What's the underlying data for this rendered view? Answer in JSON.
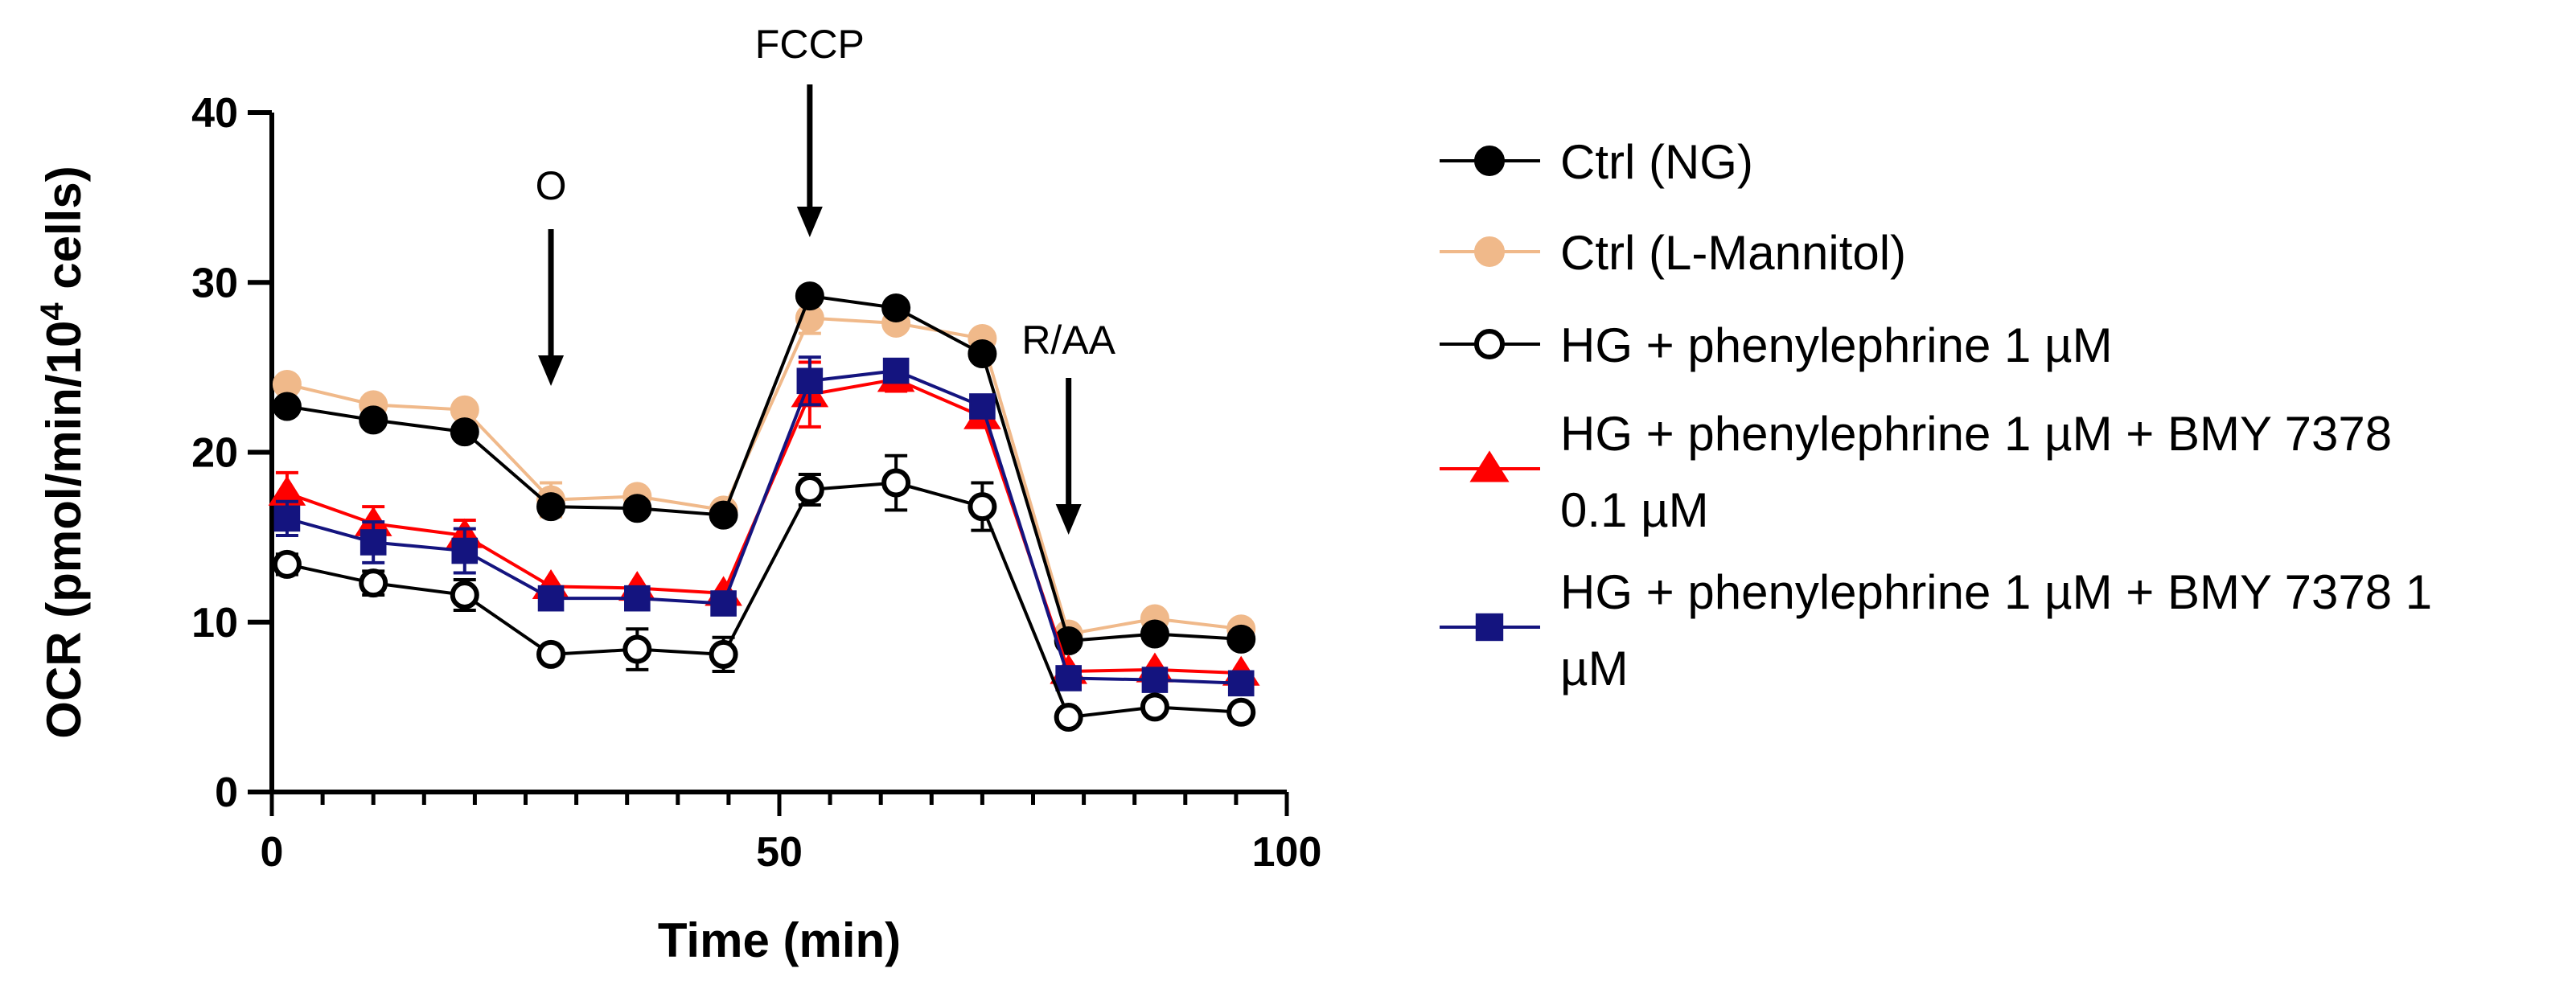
{
  "chart_data": {
    "type": "line",
    "title": "",
    "xlabel": "Time (min)",
    "ylabel": {
      "main": "OCR (pmol/min/10",
      "sup": "4",
      "end": " cells)"
    },
    "xlim": [
      0,
      100
    ],
    "ylim": [
      0,
      40
    ],
    "xticks": [
      0,
      50,
      100
    ],
    "yticks": [
      0,
      10,
      20,
      30,
      40
    ],
    "x": [
      1.5,
      10,
      19,
      27.5,
      36,
      44.5,
      53,
      61.5,
      70,
      78.5,
      87,
      95.5
    ],
    "injections": [
      {
        "label": "O",
        "x": 27.5
      },
      {
        "label": "FCCP",
        "x": 53
      },
      {
        "label": "R/AA",
        "x": 78.5
      }
    ],
    "series": [
      {
        "name": "Ctrl (L-Mannitol)",
        "color": "#F0B98A",
        "marker": "circle",
        "filled": true,
        "values": [
          24.0,
          22.8,
          22.5,
          17.2,
          17.4,
          16.6,
          27.9,
          27.6,
          26.7,
          9.3,
          10.2,
          9.6
        ],
        "errors": [
          0,
          0,
          0,
          1.0,
          0,
          0,
          0.9,
          0,
          0,
          0,
          0,
          0
        ]
      },
      {
        "name": "Ctrl (NG)",
        "color": "#000000",
        "marker": "circle",
        "filled": true,
        "values": [
          22.7,
          21.9,
          21.2,
          16.8,
          16.7,
          16.3,
          29.2,
          28.5,
          25.8,
          8.9,
          9.3,
          9.0
        ],
        "errors": [
          0,
          0,
          0,
          0,
          0,
          0,
          0,
          0,
          0,
          0,
          0,
          0
        ]
      },
      {
        "name": "HG + phenylephrine 1 µM + BMY 7378 0.1 µM",
        "color": "#FF0000",
        "marker": "triangle",
        "filled": true,
        "values": [
          17.6,
          15.8,
          15.1,
          12.1,
          12.0,
          11.7,
          23.4,
          24.3,
          22.1,
          7.1,
          7.2,
          7.0
        ],
        "errors": [
          1.2,
          1.0,
          0.9,
          0,
          0,
          0,
          1.9,
          0.7,
          0.5,
          0,
          0,
          0
        ]
      },
      {
        "name": "HG + phenylephrine 1 µM + BMY 7378 1 µM",
        "color": "#14147F",
        "marker": "square",
        "filled": true,
        "values": [
          16.1,
          14.7,
          14.2,
          11.4,
          11.4,
          11.1,
          24.2,
          24.8,
          22.7,
          6.7,
          6.6,
          6.4
        ],
        "errors": [
          1.0,
          1.2,
          1.3,
          0,
          0,
          0.6,
          1.4,
          0,
          0,
          0,
          0,
          0
        ]
      },
      {
        "name": "HG + phenylephrine 1 µM",
        "color": "#000000",
        "marker": "circle",
        "filled": false,
        "values": [
          13.4,
          12.3,
          11.6,
          8.1,
          8.4,
          8.1,
          17.8,
          18.2,
          16.8,
          4.4,
          5.0,
          4.7
        ],
        "errors": [
          0.6,
          0.7,
          0.9,
          0,
          1.2,
          1.0,
          0.9,
          1.6,
          1.4,
          0,
          0,
          0
        ]
      }
    ],
    "legend": {
      "position": "right",
      "entries": [
        {
          "lines": [
            "Ctrl (NG)"
          ],
          "color": "#000000",
          "marker": "circle",
          "filled": true
        },
        {
          "lines": [
            "Ctrl (L-Mannitol)"
          ],
          "color": "#F0B98A",
          "marker": "circle",
          "filled": true
        },
        {
          "lines": [
            "HG + phenylephrine 1 µM"
          ],
          "color": "#000000",
          "marker": "circle",
          "filled": false
        },
        {
          "lines": [
            "HG + phenylephrine 1 µM + BMY 7378",
            "0.1 µM"
          ],
          "color": "#FF0000",
          "marker": "triangle",
          "filled": true
        },
        {
          "lines": [
            "HG + phenylephrine 1 µM + BMY 7378 1",
            "µM"
          ],
          "color": "#14147F",
          "marker": "square",
          "filled": true
        }
      ]
    }
  }
}
